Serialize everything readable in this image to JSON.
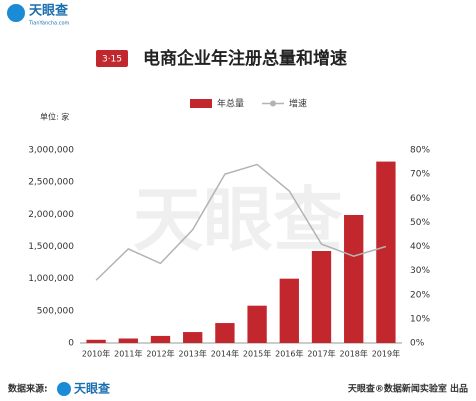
{
  "header": {
    "logo": "天眼查",
    "logo_sub": "TianYancha.com",
    "badge": "3·15"
  },
  "chart_data": {
    "type": "bar",
    "title": "电商企业年注册总量和增速",
    "y_label": "单位: 家",
    "categories": [
      "2010年",
      "2011年",
      "2012年",
      "2013年",
      "2014年",
      "2015年",
      "2016年",
      "2017年",
      "2018年",
      "2019年"
    ],
    "series": [
      {
        "name": "年总量",
        "type": "bar",
        "color": "#c1272d",
        "values": [
          50000,
          70000,
          110000,
          170000,
          310000,
          580000,
          1000000,
          1430000,
          1990000,
          2820000
        ]
      },
      {
        "name": "增速",
        "type": "line",
        "axis": "y2",
        "color": "#b3b3b3",
        "values": [
          26,
          39,
          33,
          47,
          70,
          74,
          63,
          41,
          36,
          40
        ]
      }
    ],
    "ylim": [
      0,
      3000000
    ],
    "yticks": [
      0,
      {
        "value": 500000,
        "label": "500,000"
      },
      {
        "value": 1000000,
        "label": "1,000,000"
      },
      {
        "value": 1500000,
        "label": "1,500,000"
      },
      {
        "value": 2000000,
        "label": "2,000,000"
      },
      {
        "value": 2500000,
        "label": "2,500,000"
      },
      {
        "value": 3000000,
        "label": "3,000,000"
      }
    ],
    "y2lim": [
      0,
      80
    ],
    "y2ticks": [
      {
        "value": 0,
        "label": "0%"
      },
      {
        "value": 10,
        "label": "10%"
      },
      {
        "value": 20,
        "label": "20%"
      },
      {
        "value": 30,
        "label": "30%"
      },
      {
        "value": 40,
        "label": "40%"
      },
      {
        "value": 50,
        "label": "50%"
      },
      {
        "value": 60,
        "label": "60%"
      },
      {
        "value": 70,
        "label": "70%"
      },
      {
        "value": 80,
        "label": "80%"
      }
    ],
    "watermark": "天眼查"
  },
  "footer": {
    "source": "数据来源:",
    "source_logo": "天眼查",
    "credit": "天眼查®数据新闻实验室 出品"
  }
}
